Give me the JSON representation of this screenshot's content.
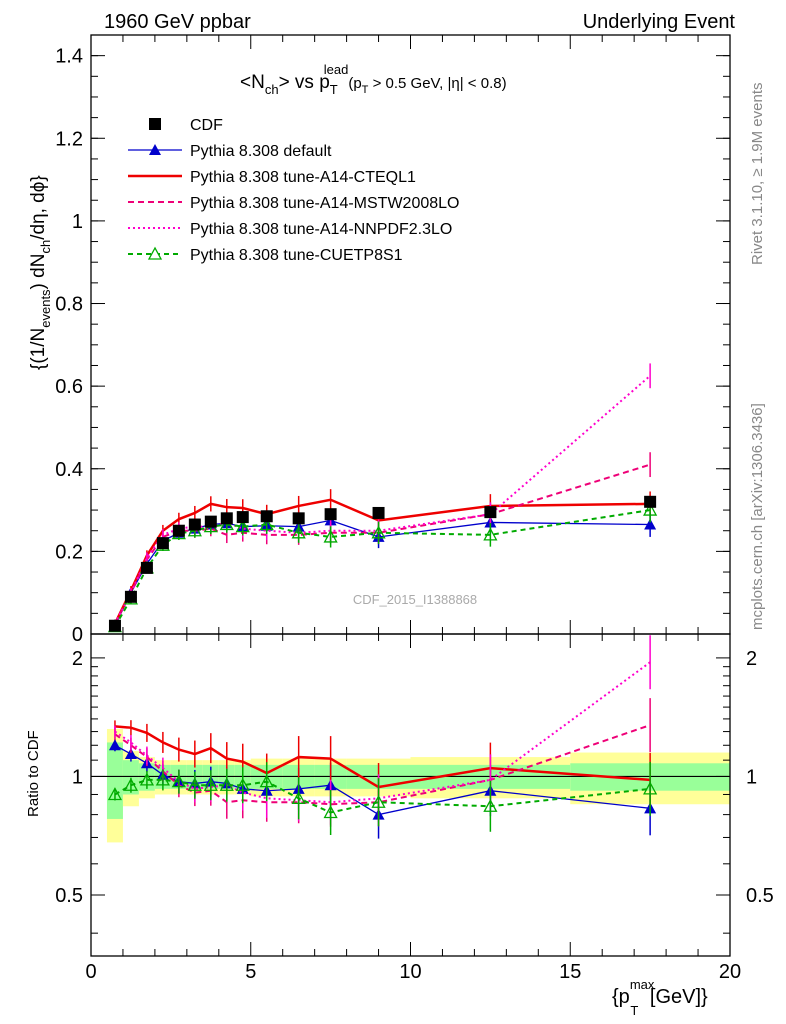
{
  "header": {
    "left": "1960 GeV ppbar",
    "right": "Underlying Event"
  },
  "side": {
    "rivet": "Rivet 3.1.10, ≥ 1.9M events",
    "mcplots": "mcplots.cern.ch [arXiv:1306.3436]"
  },
  "watermark": "CDF_2015_I1388868",
  "chart_data": [
    {
      "type": "line",
      "title_parts": {
        "main": "<N",
        "sub1": "ch",
        "mid": "> vs p",
        "sup": "lead",
        "sub2": "T",
        "cut_a": "(p",
        "cut_b": "T",
        "cut_c": " > 0.5 GeV, |η| < 0.8)"
      },
      "ylabel_parts": {
        "a": "{(1/N",
        "b": "events",
        "c": ") dN",
        "d": "ch",
        "e": "/dη, dϕ}"
      },
      "ylim": [
        0,
        1.45
      ],
      "xlim": [
        0,
        20
      ],
      "yticks": [
        "0",
        "0.2",
        "0.4",
        "0.6",
        "0.8",
        "1",
        "1.2",
        "1.4"
      ],
      "x": [
        0.75,
        1.25,
        1.75,
        2.25,
        2.75,
        3.25,
        3.75,
        4.25,
        4.75,
        5.5,
        6.5,
        7.5,
        9.0,
        12.5,
        17.5
      ],
      "series": [
        {
          "name": "CDF",
          "color": "#000000",
          "values": [
            0.02,
            0.09,
            0.16,
            0.22,
            0.25,
            0.265,
            0.272,
            0.28,
            0.283,
            0.285,
            0.28,
            0.29,
            0.293,
            0.295,
            0.32
          ]
        },
        {
          "name": "Pythia 8.308 default",
          "color": "#0000cc",
          "values": [
            0.02,
            0.1,
            0.17,
            0.225,
            0.245,
            0.255,
            0.265,
            0.268,
            0.26,
            0.262,
            0.26,
            0.275,
            0.235,
            0.27,
            0.265
          ]
        },
        {
          "name": "Pythia 8.308 tune-A14-CTEQL1",
          "color": "#ee0000",
          "values": [
            0.025,
            0.105,
            0.19,
            0.25,
            0.278,
            0.293,
            0.315,
            0.307,
            0.305,
            0.29,
            0.31,
            0.325,
            0.275,
            0.31,
            0.315
          ]
        },
        {
          "name": "Pythia 8.308 tune-A14-MSTW2008LO",
          "color": "#ee0077",
          "values": [
            0.025,
            0.1,
            0.18,
            0.235,
            0.25,
            0.25,
            0.255,
            0.24,
            0.245,
            0.24,
            0.24,
            0.245,
            0.245,
            0.29,
            0.41
          ]
        },
        {
          "name": "Pythia 8.308 tune-A14-NNPDF2.3LO",
          "color": "#ff00cc",
          "values": [
            0.025,
            0.1,
            0.185,
            0.24,
            0.255,
            0.26,
            0.26,
            0.27,
            0.255,
            0.25,
            0.245,
            0.25,
            0.25,
            0.29,
            0.625
          ]
        },
        {
          "name": "Pythia 8.308 tune-CUETP8S1",
          "color": "#00aa00",
          "values": [
            0.018,
            0.085,
            0.16,
            0.215,
            0.243,
            0.25,
            0.26,
            0.265,
            0.26,
            0.265,
            0.245,
            0.235,
            0.245,
            0.24,
            0.3
          ]
        }
      ]
    },
    {
      "type": "line",
      "ylabel": "Ratio to CDF",
      "xlabel_parts": {
        "a": "{p",
        "sup": "max",
        "sub": "T",
        "b": " [GeV]}"
      },
      "ylim": [
        0.35,
        2.3
      ],
      "xlim": [
        0,
        20
      ],
      "yticks": [
        "0.5",
        "1",
        "2"
      ],
      "xticks": [
        "0",
        "5",
        "10",
        "15",
        "20"
      ],
      "x": [
        0.75,
        1.25,
        1.75,
        2.25,
        2.75,
        3.25,
        3.75,
        4.25,
        4.75,
        5.5,
        6.5,
        7.5,
        9.0,
        12.5,
        17.5
      ],
      "series": [
        {
          "name": "Pythia 8.308 default",
          "color": "#0000cc",
          "values": [
            1.2,
            1.14,
            1.08,
            1.01,
            0.97,
            0.96,
            0.97,
            0.96,
            0.93,
            0.92,
            0.93,
            0.95,
            0.8,
            0.92,
            0.83
          ]
        },
        {
          "name": "Pythia 8.308 tune-A14-CTEQL1",
          "color": "#ee0000",
          "values": [
            1.34,
            1.33,
            1.29,
            1.22,
            1.17,
            1.14,
            1.18,
            1.11,
            1.09,
            1.02,
            1.12,
            1.11,
            0.94,
            1.05,
            0.98
          ]
        },
        {
          "name": "Pythia 8.308 tune-A14-MSTW2008LO",
          "color": "#ee0077",
          "values": [
            1.28,
            1.2,
            1.12,
            1.03,
            0.95,
            0.91,
            0.92,
            0.86,
            0.87,
            0.86,
            0.86,
            0.85,
            0.86,
            0.98,
            1.35
          ]
        },
        {
          "name": "Pythia 8.308 tune-A14-NNPDF2.3LO",
          "color": "#ff00cc",
          "values": [
            1.3,
            1.22,
            1.13,
            1.05,
            0.97,
            0.93,
            0.94,
            0.95,
            0.91,
            0.88,
            0.87,
            0.86,
            0.88,
            0.98,
            1.95
          ]
        },
        {
          "name": "Pythia 8.308 tune-CUETP8S1",
          "color": "#00aa00",
          "values": [
            0.9,
            0.95,
            0.98,
            0.98,
            0.97,
            0.95,
            0.95,
            0.95,
            0.95,
            0.97,
            0.88,
            0.81,
            0.86,
            0.84,
            0.93
          ]
        }
      ],
      "bands": {
        "x_edges": [
          0.5,
          1.0,
          1.5,
          2.0,
          2.5,
          3.0,
          3.5,
          4.0,
          4.5,
          5.0,
          6.0,
          7.0,
          8.0,
          10.0,
          15.0,
          20.0
        ],
        "inner": [
          0.22,
          0.1,
          0.08,
          0.07,
          0.07,
          0.07,
          0.07,
          0.07,
          0.07,
          0.07,
          0.07,
          0.07,
          0.07,
          0.07,
          0.08
        ],
        "outer": [
          0.32,
          0.16,
          0.12,
          0.1,
          0.1,
          0.1,
          0.1,
          0.1,
          0.1,
          0.11,
          0.11,
          0.11,
          0.11,
          0.12,
          0.15
        ]
      }
    }
  ]
}
